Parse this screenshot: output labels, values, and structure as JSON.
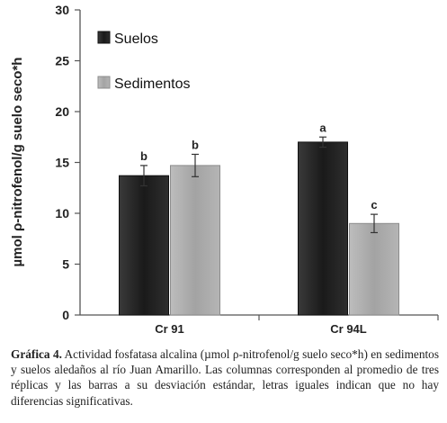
{
  "chart_data": {
    "type": "bar",
    "ylabel": "µmol ρ-nitrofenol/g suelo seco*h",
    "ylim": [
      0,
      30
    ],
    "yticks": [
      0,
      5,
      10,
      15,
      20,
      25,
      30
    ],
    "categories": [
      "Cr 91",
      "Cr 94L"
    ],
    "legend_position": "top-left",
    "series": [
      {
        "name": "Suelos",
        "color": "#1f1f1f",
        "values": [
          13.7,
          17.0
        ],
        "errors": [
          1.0,
          0.5
        ],
        "labels": [
          "b",
          "a"
        ]
      },
      {
        "name": "Sedimentos",
        "color": "#a9a9a9",
        "values": [
          14.7,
          9.0
        ],
        "errors": [
          1.1,
          0.9
        ],
        "labels": [
          "b",
          "c"
        ]
      }
    ]
  },
  "caption": {
    "label": "Gráfica 4.",
    "text": " Actividad fosfatasa alcalina (µmol ρ-nitrofenol/g suelo seco*h) en sedimentos y suelos aledaños al río Juan Amarillo. Las columnas corresponden al promedio de tres réplicas y las barras a su desviación estándar, letras iguales indican que no hay diferencias significativas."
  }
}
